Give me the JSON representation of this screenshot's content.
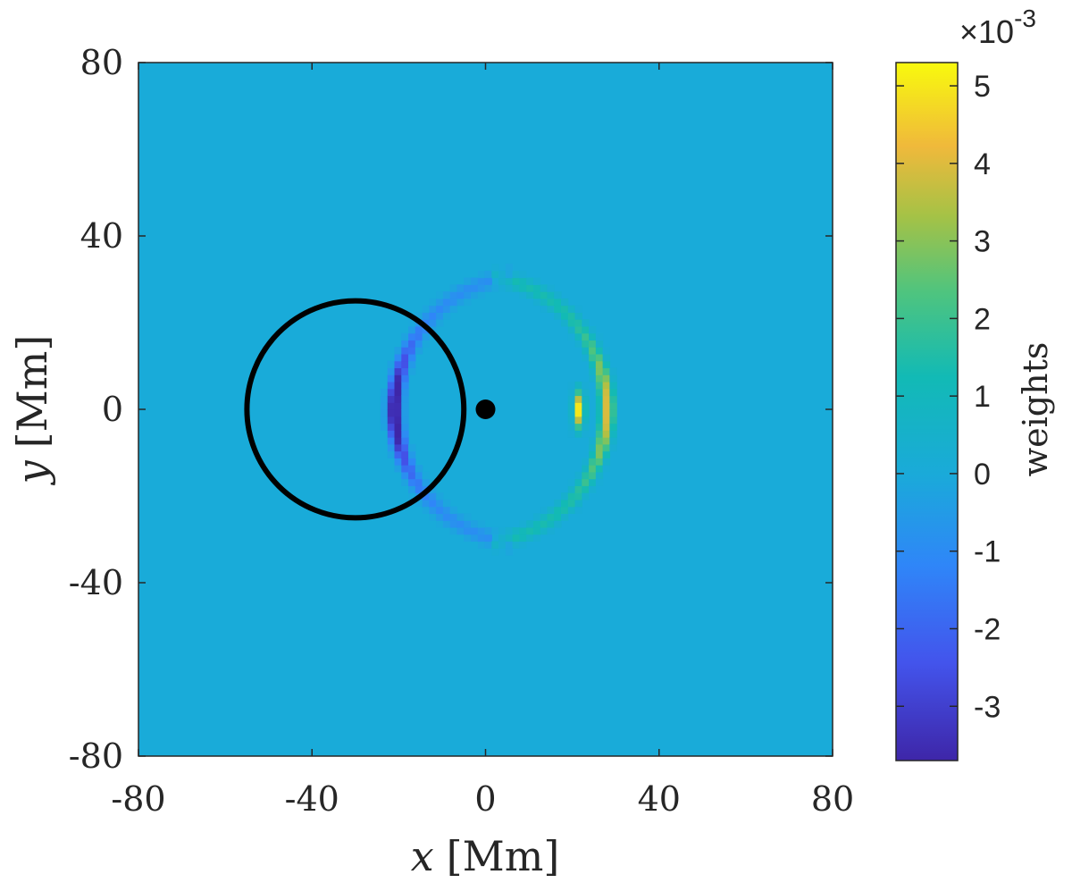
{
  "chart_data": {
    "type": "heatmap",
    "title": "",
    "x_axis": {
      "label_var": "x",
      "label_unit": "[Mm]",
      "range": [
        -80,
        80
      ],
      "ticks": [
        -80,
        -40,
        0,
        40,
        80
      ],
      "tick_labels": [
        "-80",
        "-40",
        "0",
        "40",
        "80"
      ]
    },
    "y_axis": {
      "label_var": "y",
      "label_unit": "[Mm]",
      "range": [
        -80,
        80
      ],
      "ticks": [
        -80,
        -40,
        0,
        40,
        80
      ],
      "tick_labels": [
        "-80",
        "-40",
        "0",
        "40",
        "80"
      ]
    },
    "colorbar": {
      "label": "weights",
      "multiplier_text": "×10",
      "multiplier_exponent": "-3",
      "range": [
        -3.7,
        5.3
      ],
      "ticks": [
        -3,
        -2,
        -1,
        0,
        1,
        2,
        3,
        4,
        5
      ],
      "tick_labels": [
        "-3",
        "-2",
        "-1",
        "0",
        "1",
        "2",
        "3",
        "4",
        "5"
      ],
      "colormap": "parula"
    },
    "features": {
      "background_value": 0,
      "circle": {
        "center": [
          -30,
          0
        ],
        "radius": 25,
        "color": "#000000"
      },
      "dot": {
        "center": [
          0,
          0
        ],
        "color": "#000000"
      },
      "negative_arc": {
        "center": [
          10,
          0
        ],
        "radius": 31,
        "min_value": -3.6,
        "side": "left"
      },
      "positive_arc": {
        "center": [
          -3,
          0
        ],
        "radius": 31,
        "max_value": 4.0,
        "side": "right"
      },
      "hotspot": {
        "center": [
          21.5,
          0
        ],
        "peak_value": 5.2,
        "half_height": 6
      }
    }
  }
}
